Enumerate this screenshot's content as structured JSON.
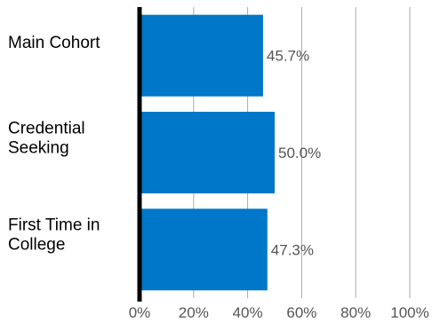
{
  "chart_data": {
    "type": "bar",
    "orientation": "horizontal",
    "categories": [
      "Main Cohort",
      "Credential Seeking",
      "First Time in College"
    ],
    "category_lines": [
      [
        "Main Cohort"
      ],
      [
        "Credential",
        "Seeking"
      ],
      [
        "First Time in",
        "College"
      ]
    ],
    "values": [
      45.7,
      50.0,
      47.3
    ],
    "value_labels": [
      "45.7%",
      "50.0%",
      "47.3%"
    ],
    "xlim": [
      0,
      100
    ],
    "x_ticks": [
      0,
      20,
      40,
      60,
      80,
      100
    ],
    "x_tick_labels": [
      "0%",
      "20%",
      "40%",
      "60%",
      "80%",
      "100%"
    ],
    "title": "",
    "xlabel": "",
    "ylabel": "",
    "grid": true,
    "legend": "none",
    "colors": {
      "bar": "#0077c8",
      "grid": "#aaaaaa",
      "axis": "#000000",
      "value_label": "#555555",
      "category_label": "#000000",
      "tick_label": "#555555"
    }
  }
}
